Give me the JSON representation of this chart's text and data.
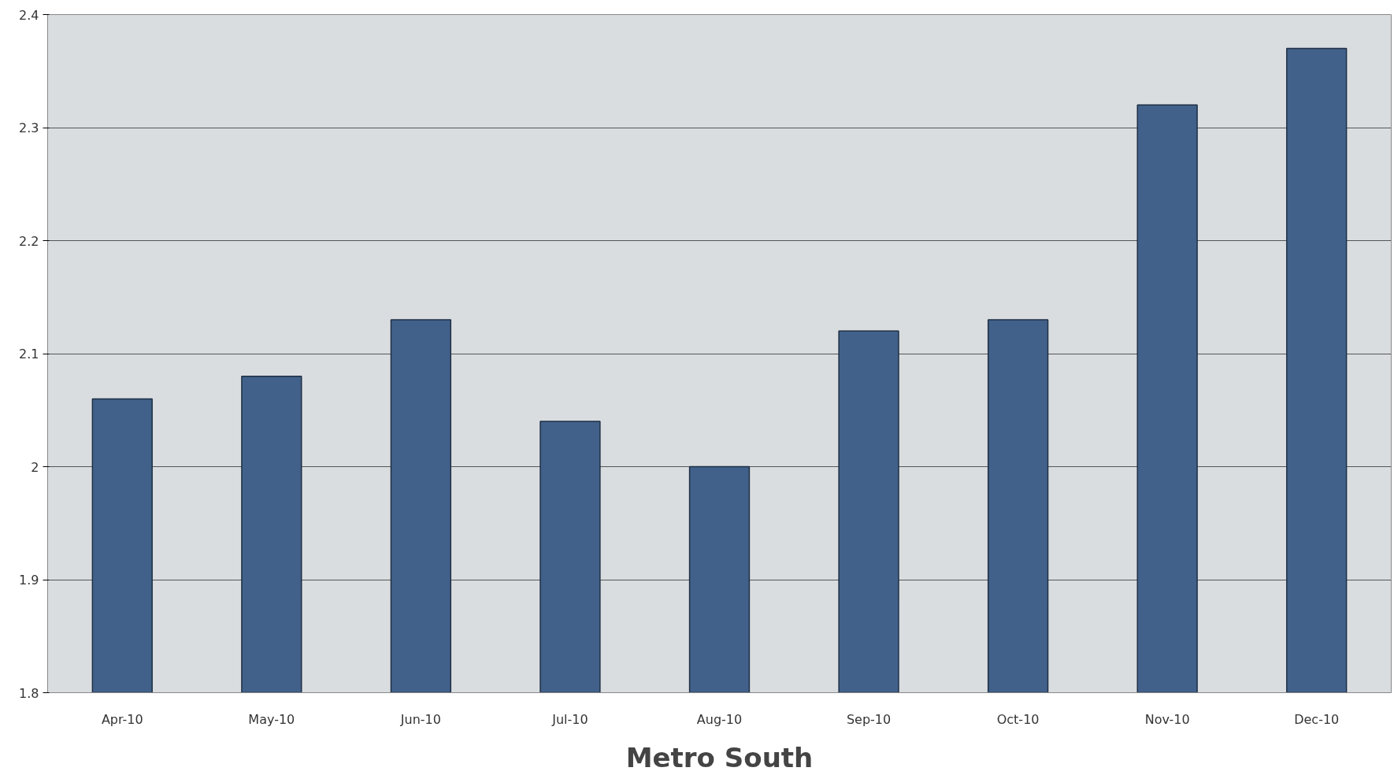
{
  "chart_data": {
    "type": "bar",
    "xlabel": "Metro South",
    "categories": [
      "Apr-10",
      "May-10",
      "Jun-10",
      "Jul-10",
      "Aug-10",
      "Sep-10",
      "Oct-10",
      "Nov-10",
      "Dec-10"
    ],
    "values": [
      2.06,
      2.08,
      2.13,
      2.04,
      2.0,
      2.12,
      2.13,
      2.32,
      2.37
    ],
    "color": "#41618a",
    "ylim": [
      1.8,
      2.4
    ],
    "yticks": [
      1.8,
      1.9,
      2,
      2.1,
      2.2,
      2.3,
      2.4
    ],
    "grid": "y"
  }
}
